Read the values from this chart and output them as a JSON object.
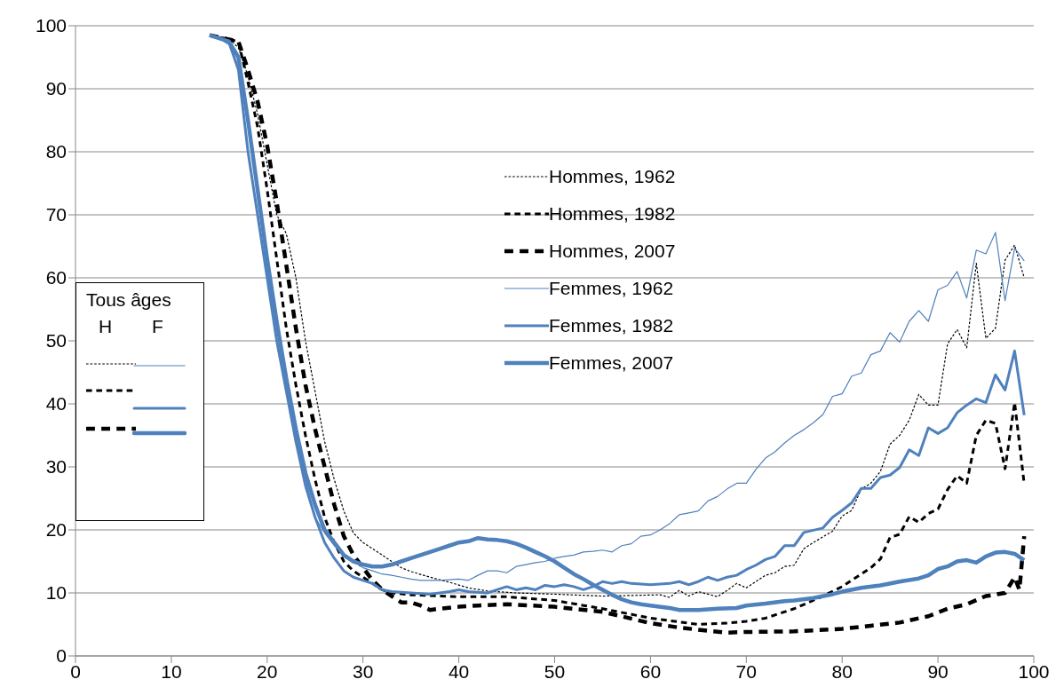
{
  "chart_data": {
    "type": "line",
    "xlim": [
      0,
      100
    ],
    "xticks": [
      0,
      10,
      20,
      30,
      40,
      50,
      60,
      70,
      80,
      90,
      100
    ],
    "ylim": [
      0,
      100
    ],
    "yticks": [
      0,
      10,
      20,
      30,
      40,
      50,
      60,
      70,
      80,
      90,
      100
    ],
    "grid": "y",
    "legend": "top",
    "marker": "none",
    "annotations": [
      "Tous âges",
      "H",
      "F"
    ],
    "series": [
      {
        "name": "Hommes, 1962",
        "color": "#000000",
        "line_style": "dashed",
        "x": [
          14,
          16,
          17,
          18,
          19,
          20,
          21,
          22,
          23,
          24,
          25,
          26,
          27,
          28,
          29,
          30,
          31,
          32,
          33,
          34,
          35,
          37,
          39,
          41,
          43,
          46,
          50,
          55,
          58,
          61,
          62,
          63,
          64,
          65,
          66,
          67,
          68,
          69,
          70,
          71,
          72,
          73,
          74,
          75,
          76,
          77,
          78,
          79,
          80,
          81,
          82,
          83,
          84,
          85,
          86,
          87,
          88,
          89,
          90,
          91,
          92,
          93,
          94,
          95,
          96,
          97,
          98,
          99
        ],
        "values": [
          98.5,
          98,
          96.5,
          92,
          86,
          78,
          70,
          67,
          60,
          50,
          42,
          34,
          28,
          23,
          19.5,
          18,
          17,
          16,
          15,
          14,
          13.4,
          12.5,
          11.7,
          10.8,
          10.3,
          10,
          9.8,
          9.5,
          9.6,
          9.7,
          9.3,
          10.4,
          9.5,
          10.2,
          9.8,
          9.4,
          10.4,
          11.5,
          10.8,
          11.8,
          12.8,
          13.2,
          14.2,
          14.4,
          17,
          18,
          18.9,
          19.8,
          22.2,
          23.1,
          26.5,
          27.4,
          29.3,
          33.6,
          35,
          37.4,
          41.5,
          39.8,
          39.8,
          49.5,
          51.8,
          48.9,
          62.3,
          50.4,
          52,
          62.8,
          65.2,
          60
        ]
      },
      {
        "name": "Hommes, 1982",
        "color": "#000000",
        "line_style": "dashed",
        "x": [
          14,
          17,
          18,
          19,
          20,
          21,
          22,
          23,
          24,
          25,
          26,
          27,
          28,
          29,
          30,
          31,
          32,
          33,
          35,
          38,
          40,
          45,
          50,
          55,
          60,
          65,
          68,
          70,
          72,
          75,
          78,
          80,
          83,
          84,
          85,
          86,
          87,
          88,
          89,
          90,
          91,
          92,
          93,
          94,
          95,
          96,
          97,
          98,
          99
        ],
        "values": [
          98.5,
          97.5,
          91,
          84,
          74,
          63,
          52,
          43,
          35,
          28,
          22,
          18,
          15,
          13.5,
          12.5,
          11.5,
          10.5,
          10,
          9.7,
          9.5,
          9.4,
          9.4,
          8.8,
          7.5,
          6,
          5,
          5.2,
          5.5,
          6,
          7.5,
          9.5,
          11,
          14,
          15.4,
          18.8,
          19.3,
          22.1,
          21.2,
          22.6,
          23.3,
          26.4,
          28.6,
          27.4,
          35,
          37.4,
          36.9,
          29.7,
          40.2,
          27.3
        ]
      },
      {
        "name": "Hommes, 2007",
        "color": "#000000",
        "line_style": "dashed",
        "x": [
          14,
          17,
          18,
          19,
          20,
          21,
          22,
          23,
          24,
          25,
          26,
          27,
          28,
          29,
          30,
          31,
          32,
          33,
          34,
          35,
          36,
          37,
          38,
          40,
          42,
          45,
          50,
          55,
          60,
          63,
          66,
          68,
          70,
          75,
          80,
          83,
          86,
          89,
          91,
          93,
          95,
          97,
          98,
          98.5,
          99
        ],
        "values": [
          98.5,
          97.5,
          93,
          88,
          81,
          72,
          62,
          52,
          43,
          36,
          30,
          24,
          19,
          16,
          14,
          12,
          10.5,
          9.5,
          8.5,
          8.5,
          8,
          7.3,
          7.5,
          7.8,
          8,
          8.2,
          7.8,
          7,
          5.2,
          4.5,
          4,
          3.7,
          3.8,
          3.9,
          4.3,
          4.8,
          5.3,
          6.3,
          7.5,
          8.2,
          9.5,
          10,
          12.5,
          10.5,
          19
        ]
      },
      {
        "name": "Femmes, 1962",
        "color": "#4f81bd",
        "line_style": "solid",
        "x": [
          14,
          15,
          16,
          17,
          18,
          19,
          20,
          21,
          22,
          23,
          24,
          25,
          26,
          27,
          28,
          29,
          30,
          31,
          32,
          33,
          34,
          35,
          36,
          38,
          40,
          41,
          42,
          43,
          44,
          45,
          46,
          47,
          48,
          49,
          50,
          51,
          52,
          53,
          54,
          55,
          56,
          57,
          58,
          59,
          60,
          61,
          62,
          63,
          64,
          65,
          66,
          67,
          68,
          69,
          70,
          71,
          72,
          73,
          74,
          75,
          76,
          77,
          78,
          79,
          80,
          81,
          82,
          83,
          84,
          85,
          86,
          87,
          88,
          89,
          90,
          91,
          92,
          93,
          94,
          95,
          96,
          97,
          98,
          99
        ],
        "values": [
          98.5,
          98,
          97,
          93,
          80,
          70,
          60,
          50,
          42,
          35,
          28,
          22,
          19.5,
          17.5,
          16,
          15,
          14,
          13.5,
          13,
          12.8,
          12.5,
          12.2,
          12,
          12,
          12.2,
          12,
          12.8,
          13.5,
          13.5,
          13.2,
          14.2,
          14.5,
          14.8,
          15,
          15.5,
          15.8,
          16,
          16.5,
          16.6,
          16.8,
          16.5,
          17.5,
          17.8,
          19,
          19.2,
          20,
          21,
          22.4,
          22.7,
          23,
          24.6,
          25.3,
          26.5,
          27.4,
          27.4,
          29.6,
          31.4,
          32.4,
          33.8,
          35,
          35.9,
          37,
          38.3,
          41.2,
          41.6,
          44.4,
          44.9,
          47.8,
          48.4,
          51.3,
          49.8,
          53.1,
          54.8,
          53.1,
          58.1,
          58.8,
          61,
          56.8,
          64.4,
          63.8,
          67.2,
          56.4,
          64.7,
          62.7
        ]
      },
      {
        "name": "Femmes, 1982",
        "color": "#4f81bd",
        "line_style": "solid",
        "x": [
          14,
          16,
          17,
          18,
          19,
          20,
          21,
          22,
          23,
          24,
          25,
          26,
          27,
          28,
          29,
          30,
          31,
          32,
          33,
          35,
          37,
          39,
          40,
          41,
          43,
          44,
          45,
          46,
          47,
          48,
          49,
          50,
          51,
          52,
          53,
          54,
          55,
          56,
          57,
          58,
          60,
          62,
          63,
          64,
          65,
          66,
          67,
          68,
          69,
          70,
          71,
          72,
          73,
          74,
          75,
          76,
          78,
          79,
          80,
          81,
          82,
          83,
          84,
          85,
          86,
          87,
          88,
          89,
          90,
          91,
          92,
          93,
          94,
          95,
          96,
          97,
          98,
          99
        ],
        "values": [
          98.5,
          97.5,
          93,
          80,
          70,
          60,
          50,
          42,
          34,
          27,
          22,
          18,
          15.5,
          13.5,
          12.5,
          12,
          11.5,
          10.5,
          10.2,
          10,
          9.8,
          10.2,
          10.5,
          10.2,
          10,
          10.5,
          11,
          10.5,
          10.8,
          10.5,
          11.2,
          11,
          11.3,
          11,
          10.5,
          11,
          11.8,
          11.5,
          11.8,
          11.5,
          11.3,
          11.5,
          11.8,
          11.3,
          11.8,
          12.5,
          12,
          12.5,
          12.8,
          13.7,
          14.4,
          15.3,
          15.8,
          17.5,
          17.5,
          19.6,
          20.3,
          22,
          23.1,
          24.3,
          26.6,
          26.6,
          28.3,
          28.7,
          29.9,
          32.7,
          31.8,
          36.2,
          35.3,
          36.2,
          38.6,
          39.8,
          40.8,
          40.2,
          44.6,
          42.2,
          48.4,
          38.2
        ]
      },
      {
        "name": "Femmes, 2007",
        "color": "#4f81bd",
        "line_style": "solid",
        "x": [
          14,
          16,
          17,
          18,
          19,
          20,
          21,
          22,
          23,
          24,
          25,
          26,
          27,
          28,
          29,
          30,
          31,
          32,
          33,
          34,
          35,
          36,
          37,
          38,
          39,
          40,
          41,
          42,
          43,
          44,
          45,
          46,
          47,
          48,
          49,
          50,
          51,
          52,
          53,
          54,
          55,
          56,
          57,
          58,
          59,
          60,
          62,
          63,
          65,
          67,
          69,
          70,
          72,
          74,
          75,
          77,
          79,
          80,
          82,
          84,
          86,
          88,
          89,
          90,
          91,
          92,
          93,
          94,
          95,
          96,
          97,
          98,
          99
        ],
        "values": [
          98.5,
          97.5,
          95,
          85,
          74,
          63,
          53,
          44,
          36,
          29,
          24,
          20,
          18,
          16,
          15,
          14.5,
          14.2,
          14.2,
          14.5,
          15,
          15.5,
          16,
          16.5,
          17,
          17.5,
          18,
          18.2,
          18.7,
          18.5,
          18.4,
          18.2,
          17.8,
          17.2,
          16.5,
          15.8,
          15,
          14,
          13,
          12.2,
          11.3,
          10.5,
          9.7,
          9,
          8.5,
          8.2,
          8,
          7.6,
          7.3,
          7.3,
          7.5,
          7.6,
          8,
          8.3,
          8.7,
          8.8,
          9.2,
          9.8,
          10.2,
          10.8,
          11.2,
          11.8,
          12.3,
          12.8,
          13.8,
          14.2,
          15,
          15.2,
          14.8,
          15.8,
          16.4,
          16.5,
          16.2,
          15.2
        ]
      }
    ]
  }
}
